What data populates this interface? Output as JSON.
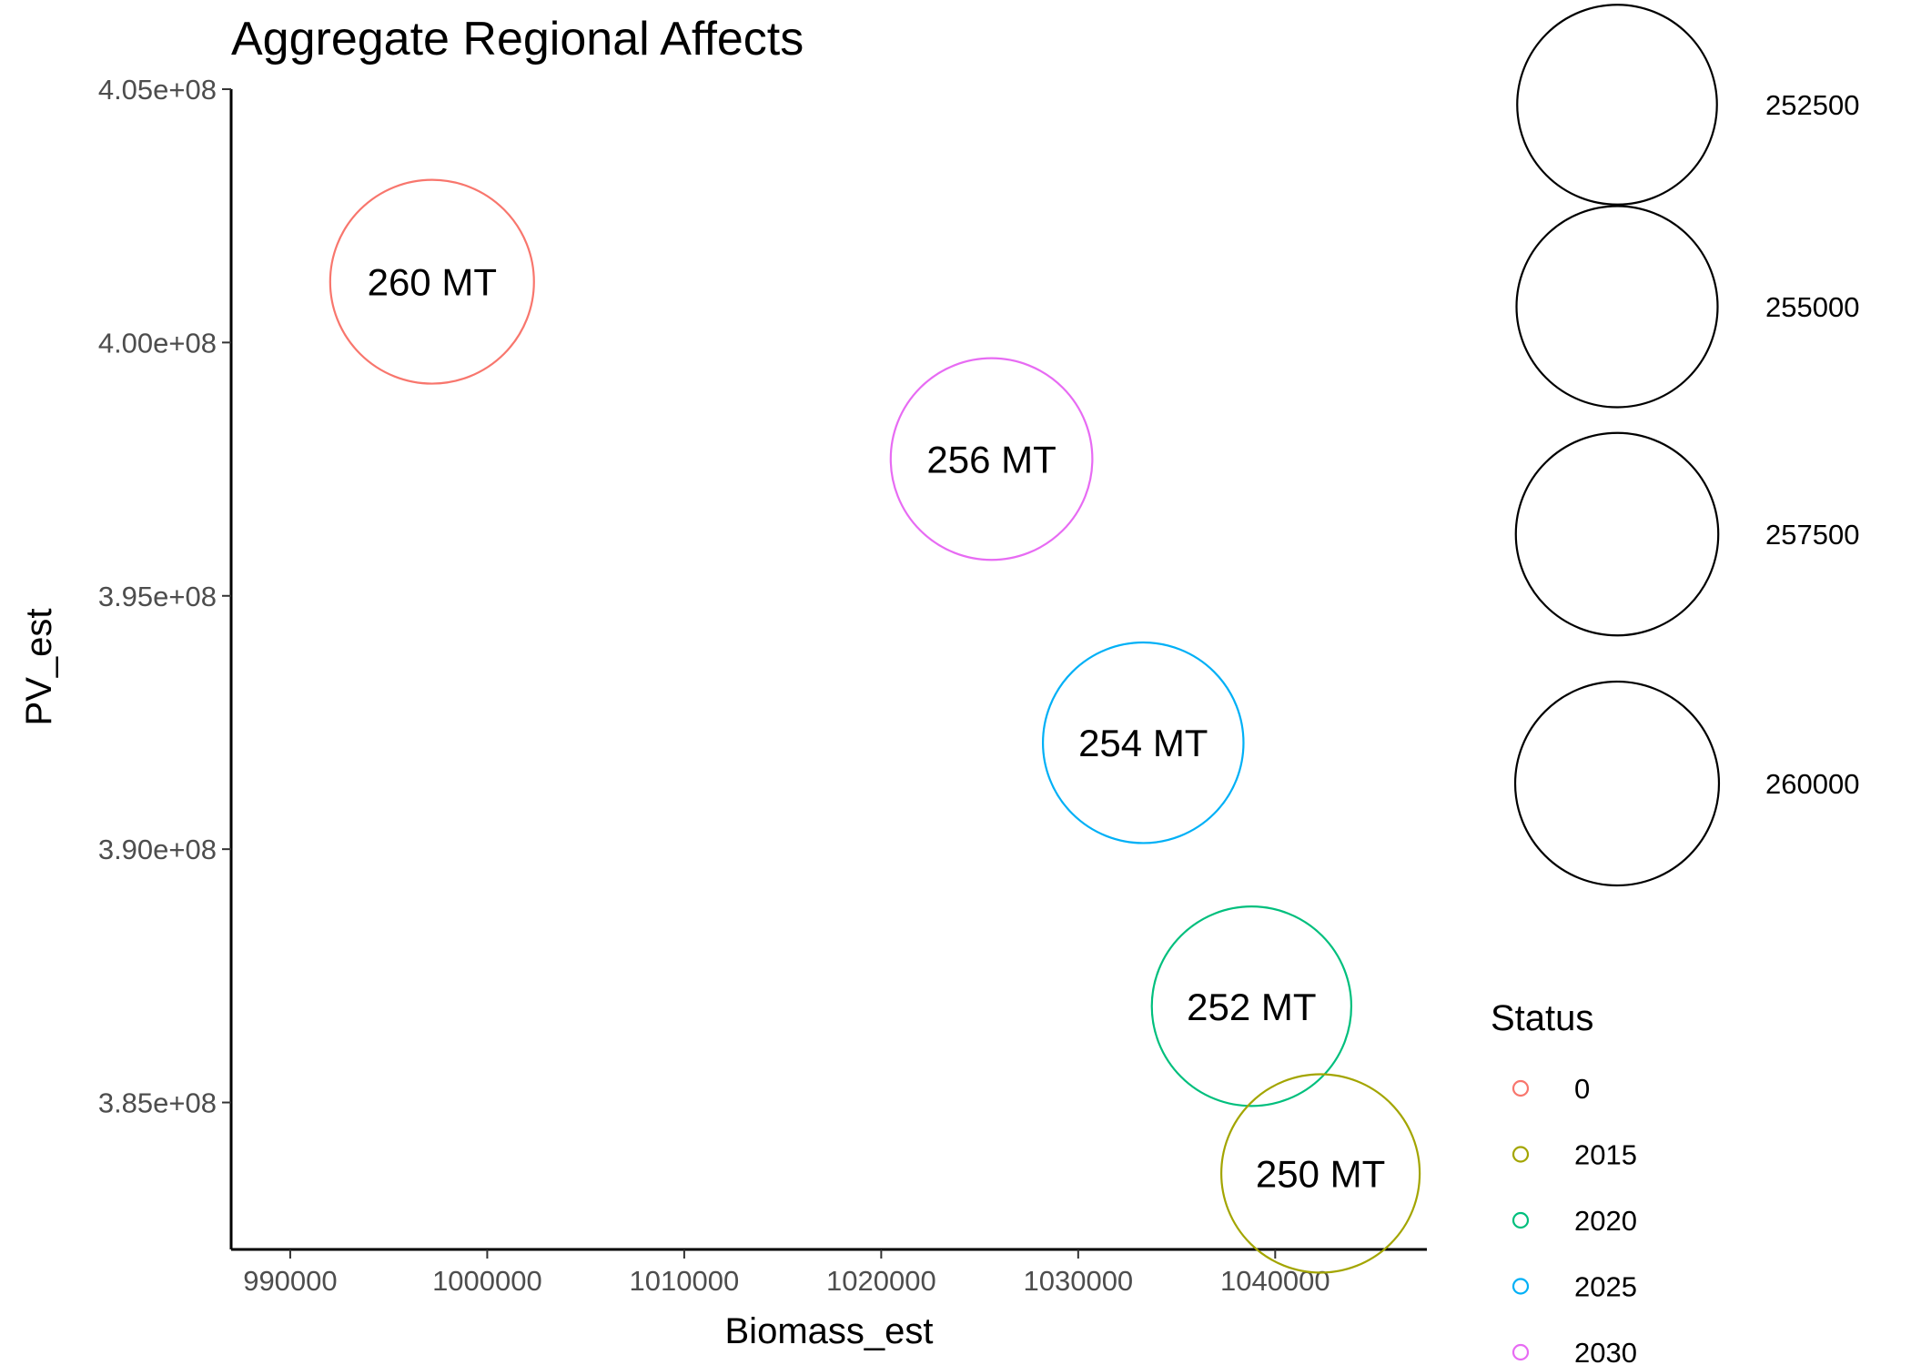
{
  "chart_data": {
    "type": "scatter",
    "title": "Aggregate Regional Affects",
    "xlabel": "Biomass_est",
    "ylabel": "PV_est",
    "xlim": [
      987000,
      1047700
    ],
    "ylim": [
      382100000,
      405000000
    ],
    "x_ticks": [
      {
        "value": 990000,
        "label": "990000"
      },
      {
        "value": 1000000,
        "label": "1000000"
      },
      {
        "value": 1010000,
        "label": "1010000"
      },
      {
        "value": 1020000,
        "label": "1020000"
      },
      {
        "value": 1030000,
        "label": "1030000"
      },
      {
        "value": 1040000,
        "label": "1040000"
      }
    ],
    "y_ticks": [
      {
        "value": 385000000,
        "label": "3.85e+08"
      },
      {
        "value": 390000000,
        "label": "3.90e+08"
      },
      {
        "value": 395000000,
        "label": "3.95e+08"
      },
      {
        "value": 400000000,
        "label": "4.00e+08"
      },
      {
        "value": 405000000,
        "label": "4.05e+08"
      }
    ],
    "grid": false,
    "points": [
      {
        "status": "0",
        "x": 997200,
        "y": 401200000,
        "size": 260000,
        "label": "260 MT"
      },
      {
        "status": "2030",
        "x": 1025600,
        "y": 397700000,
        "size": 256000,
        "label": "256 MT"
      },
      {
        "status": "2025",
        "x": 1033300,
        "y": 392100000,
        "size": 254000,
        "label": "254 MT"
      },
      {
        "status": "2020",
        "x": 1038800,
        "y": 386900000,
        "size": 252000,
        "label": "252 MT"
      },
      {
        "status": "2015",
        "x": 1042300,
        "y": 383600000,
        "size": 250000,
        "label": "250 MT"
      }
    ],
    "size_legend": {
      "items": [
        {
          "value": 252500,
          "label": "252500"
        },
        {
          "value": 255000,
          "label": "255000"
        },
        {
          "value": 257500,
          "label": "257500"
        },
        {
          "value": 260000,
          "label": "260000"
        }
      ]
    },
    "color_legend": {
      "title": "Status",
      "placement": "right",
      "items": [
        {
          "label": "0",
          "color": "#F8766D"
        },
        {
          "label": "2015",
          "color": "#A3A500"
        },
        {
          "label": "2020",
          "color": "#00BF7D"
        },
        {
          "label": "2025",
          "color": "#00B0F6"
        },
        {
          "label": "2030",
          "color": "#E76BF3"
        }
      ]
    }
  }
}
